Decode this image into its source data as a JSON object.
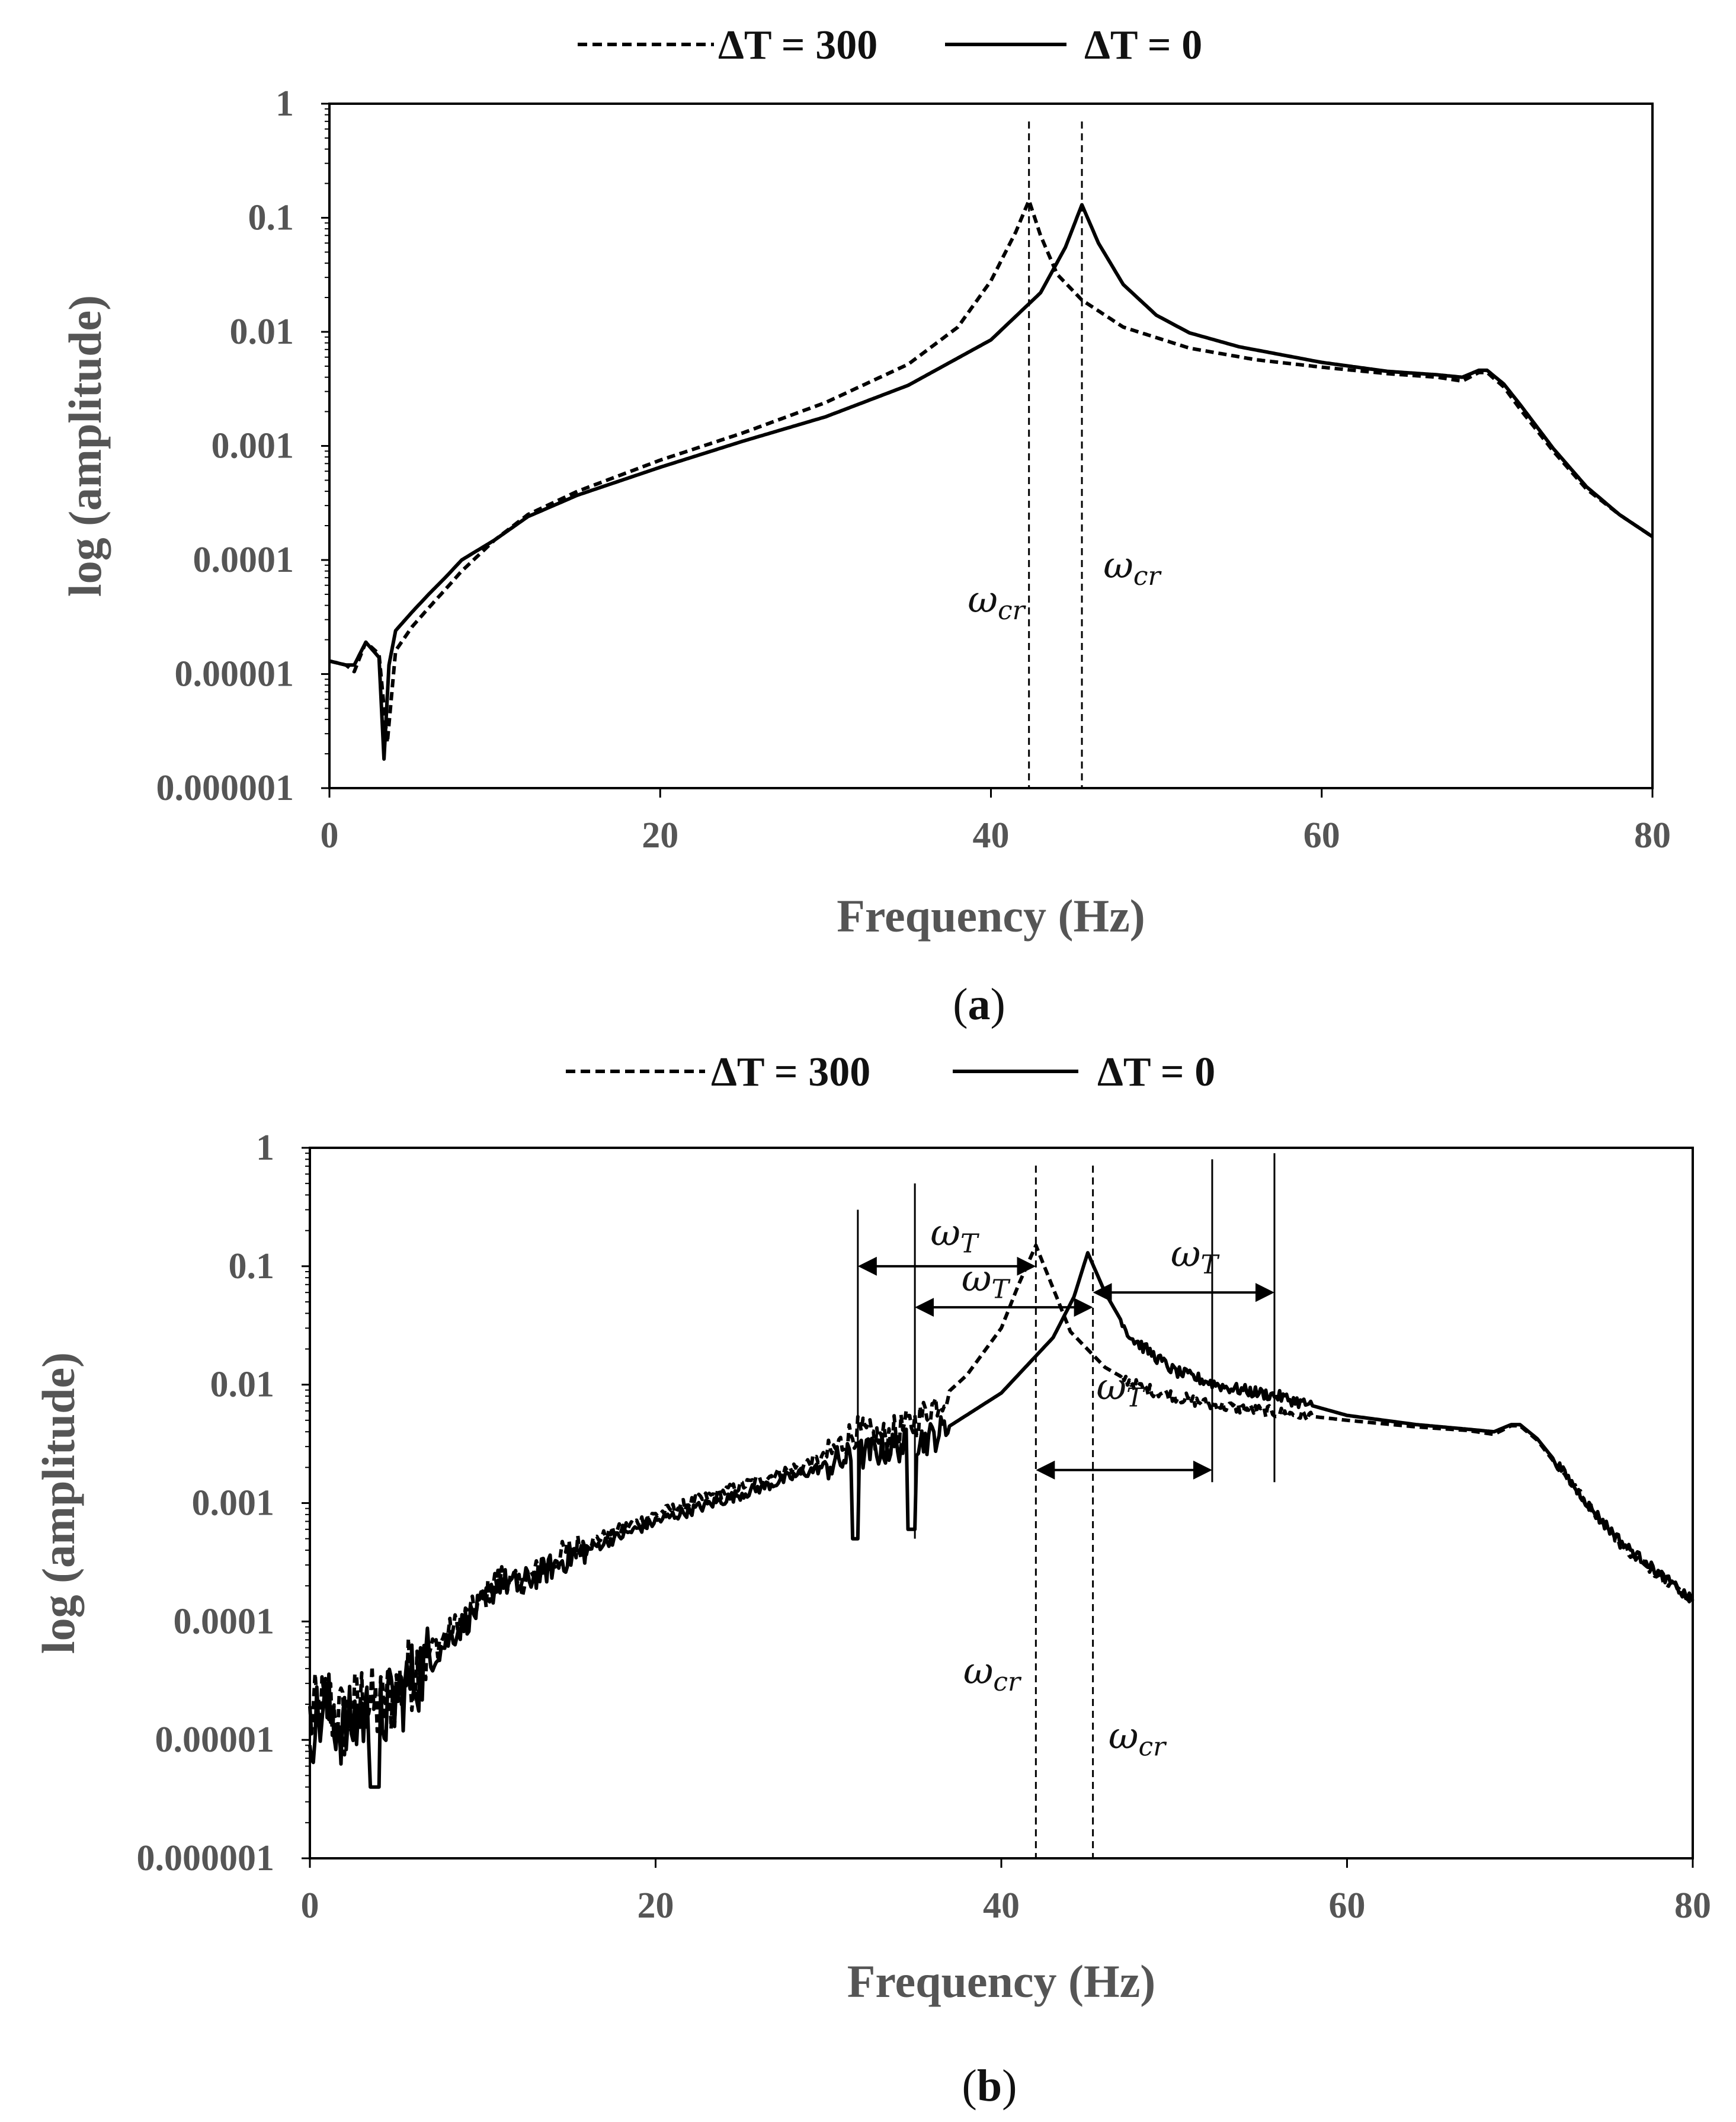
{
  "chart_data": [
    {
      "type": "line",
      "panel": "a",
      "caption_letter": "a",
      "xlabel": "Frequency (Hz)",
      "ylabel": "log (amplitude)",
      "xlim": [
        0,
        80
      ],
      "ylim": [
        1e-06,
        1
      ],
      "yscale": "log",
      "xticks": [
        "0",
        "20",
        "40",
        "60",
        "80"
      ],
      "yticks": [
        "1",
        "0.1",
        "0.01",
        "0.001",
        "0.0001",
        "0.00001",
        "0.000001"
      ],
      "legend": [
        {
          "label": "ΔT = 300",
          "style": "dashed"
        },
        {
          "label": "ΔT = 0",
          "style": "solid"
        }
      ],
      "series": [
        {
          "name": "ΔT = 300",
          "style": "dashed",
          "noise": 0,
          "x": [
            0,
            1,
            1.5,
            2.2,
            3.0,
            3.5,
            4.0,
            5,
            6,
            7,
            8,
            10,
            12,
            15,
            20,
            25,
            30,
            35,
            38,
            40,
            41.5,
            42.3,
            43,
            44,
            45.5,
            48,
            52,
            56,
            60,
            64,
            67,
            68.5,
            69.5,
            70,
            71,
            72,
            74,
            76,
            78,
            80
          ],
          "y": [
            1.3e-05,
            1.2e-05,
            1.05e-05,
            1.9e-05,
            1.5e-05,
            2.5e-06,
            1.6e-05,
            2.6e-05,
            3.8e-05,
            5.5e-05,
            8e-05,
            0.00015,
            0.00025,
            0.0004,
            0.00075,
            0.0013,
            0.0024,
            0.0052,
            0.011,
            0.028,
            0.075,
            0.142,
            0.07,
            0.032,
            0.019,
            0.011,
            0.0072,
            0.0057,
            0.0049,
            0.0043,
            0.004,
            0.0037,
            0.0044,
            0.0044,
            0.0033,
            0.0021,
            0.0009,
            0.00042,
            0.00025,
            0.00016
          ]
        },
        {
          "name": "ΔT = 0",
          "style": "solid",
          "noise": 0,
          "x": [
            0,
            1,
            1.5,
            2.2,
            3.0,
            3.3,
            3.6,
            4.0,
            5,
            6,
            7,
            8,
            10,
            12,
            15,
            20,
            25,
            30,
            35,
            40,
            43,
            44.5,
            45.5,
            46.5,
            48,
            50,
            52,
            55,
            60,
            64,
            67,
            68.5,
            69.5,
            70,
            71,
            72,
            74,
            76,
            78,
            80
          ],
          "y": [
            1.3e-05,
            1.2e-05,
            1.2e-05,
            1.9e-05,
            1.4e-05,
            1.8e-06,
            1.2e-05,
            2.4e-05,
            3.5e-05,
            5e-05,
            7e-05,
            0.0001,
            0.00015,
            0.00024,
            0.00037,
            0.00065,
            0.0011,
            0.0018,
            0.0034,
            0.0085,
            0.022,
            0.055,
            0.13,
            0.06,
            0.026,
            0.014,
            0.0098,
            0.0074,
            0.0054,
            0.0045,
            0.0042,
            0.004,
            0.0046,
            0.0046,
            0.0035,
            0.0023,
            0.00095,
            0.00044,
            0.00025,
            0.00016
          ]
        }
      ],
      "vlines": [
        42.3,
        45.5
      ],
      "annotations": [
        {
          "text": "ω",
          "sub": "cr",
          "x": 38.6,
          "y": 3.5e-05
        },
        {
          "text": "ω",
          "sub": "cr",
          "x": 46.8,
          "y": 7e-05
        }
      ]
    },
    {
      "type": "line",
      "panel": "b",
      "caption_letter": "b",
      "xlabel": "Frequency (Hz)",
      "ylabel": "log (amplitude)",
      "xlim": [
        0,
        80
      ],
      "ylim": [
        1e-06,
        1
      ],
      "yscale": "log",
      "xticks": [
        "0",
        "20",
        "40",
        "60",
        "80"
      ],
      "yticks": [
        "1",
        "0.1",
        "0.01",
        "0.001",
        "0.0001",
        "0.00001",
        "0.000001"
      ],
      "legend": [
        {
          "label": "ΔT = 300",
          "style": "dashed"
        },
        {
          "label": "ΔT = 0",
          "style": "solid"
        }
      ],
      "series": [
        {
          "name": "ΔT = 300",
          "style": "dashed",
          "noise": 1,
          "x": [
            0,
            1,
            2,
            3,
            4,
            5,
            6,
            8,
            10,
            11,
            12,
            15,
            20,
            25,
            30,
            31.5,
            33,
            35,
            38,
            40,
            41,
            42,
            43,
            44,
            46,
            48,
            52,
            56,
            60,
            64,
            67,
            68.5,
            69.5,
            70,
            71,
            72,
            74,
            76,
            78,
            80
          ],
          "y": [
            1.5e-05,
            2e-05,
            1.4e-05,
            2.2e-05,
            1.8e-05,
            2.6e-05,
            4e-05,
            8e-05,
            0.00015,
            0.00025,
            0.0002,
            0.0004,
            0.0008,
            0.0014,
            0.0025,
            0.004,
            0.0035,
            0.0048,
            0.012,
            0.03,
            0.07,
            0.15,
            0.065,
            0.028,
            0.014,
            0.0095,
            0.0068,
            0.0058,
            0.005,
            0.0044,
            0.0041,
            0.0038,
            0.0045,
            0.0045,
            0.0034,
            0.0022,
            0.00095,
            0.00042,
            0.00025,
            0.00015
          ]
        },
        {
          "name": "ΔT = 0",
          "style": "solid",
          "noise": 1,
          "x": [
            0,
            1,
            2,
            3,
            4,
            5,
            6,
            8,
            10,
            11,
            12,
            15,
            20,
            25,
            30,
            32,
            34,
            36,
            40,
            43,
            44.2,
            45,
            46,
            47.5,
            50,
            53,
            56,
            60,
            64,
            67,
            68.5,
            69.5,
            70,
            71,
            72,
            74,
            76,
            78,
            80
          ],
          "y": [
            1.3e-05,
            1.8e-05,
            1.2e-05,
            1.6e-05,
            1.5e-05,
            2.2e-05,
            3.3e-05,
            7e-05,
            0.00014,
            0.00022,
            0.0002,
            0.00035,
            0.0007,
            0.0012,
            0.0021,
            0.0026,
            0.003,
            0.0036,
            0.0085,
            0.025,
            0.055,
            0.13,
            0.06,
            0.025,
            0.013,
            0.0095,
            0.008,
            0.0055,
            0.0046,
            0.0042,
            0.004,
            0.0046,
            0.0046,
            0.0035,
            0.0023,
            0.00095,
            0.00045,
            0.00026,
            0.00015
          ]
        }
      ],
      "vlines": [
        42.0,
        45.3
      ],
      "tlines": [
        {
          "x": 31.7,
          "y_top": 0.3,
          "y_bottom": 0.0006
        },
        {
          "x": 35.0,
          "y_top": 0.5,
          "y_bottom": 0.0005
        },
        {
          "x": 52.2,
          "y_top": 0.8,
          "y_bottom": 0.0015
        },
        {
          "x": 55.8,
          "y_top": 0.9,
          "y_bottom": 0.0015
        }
      ],
      "arrows": [
        {
          "x1": 31.7,
          "x2": 42.0,
          "y": 0.1,
          "label": "ω",
          "sub": "T",
          "lx": 35.9,
          "ly": 0.15
        },
        {
          "x1": 35.0,
          "x2": 45.3,
          "y": 0.045,
          "label": "ω",
          "sub": "T",
          "lx": 37.7,
          "ly": 0.062
        },
        {
          "x1": 45.3,
          "x2": 55.8,
          "y": 0.06,
          "label": "ω",
          "sub": "T",
          "lx": 49.8,
          "ly": 0.1
        },
        {
          "x1": 42.0,
          "x2": 52.2,
          "y": 0.0019,
          "label": "ω",
          "sub": "T",
          "lx": 45.5,
          "ly": 0.0075
        }
      ],
      "annotations": [
        {
          "text": "ω",
          "sub": "cr",
          "x": 37.8,
          "y": 3e-05
        },
        {
          "text": "ω",
          "sub": "cr",
          "x": 46.2,
          "y": 8.5e-06
        }
      ]
    }
  ]
}
